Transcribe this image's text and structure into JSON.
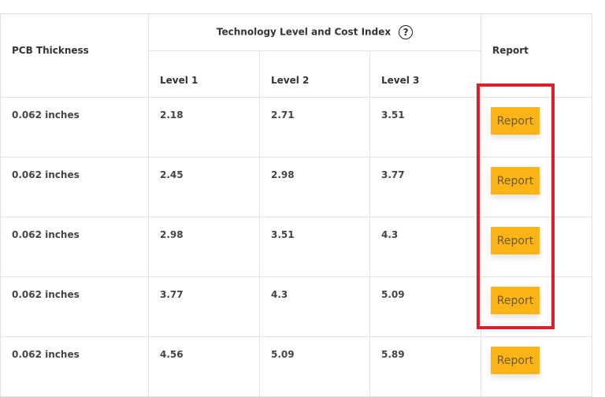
{
  "table": {
    "group_header": "Technology Level and Cost Index",
    "help_icon": "question-circle-icon",
    "columns": [
      "PCB Thickness",
      "Level 1",
      "Level 2",
      "Level 3",
      "Report"
    ],
    "rows": [
      {
        "thickness": "0.062 inches",
        "l1": "2.18",
        "l2": "2.71",
        "l3": "3.51",
        "button": "Report"
      },
      {
        "thickness": "0.062 inches",
        "l1": "2.45",
        "l2": "2.98",
        "l3": "3.77",
        "button": "Report"
      },
      {
        "thickness": "0.062 inches",
        "l1": "2.98",
        "l2": "3.51",
        "l3": "4.3",
        "button": "Report"
      },
      {
        "thickness": "0.062 inches",
        "l1": "3.77",
        "l2": "4.3",
        "l3": "5.09",
        "button": "Report"
      },
      {
        "thickness": "0.062 inches",
        "l1": "4.56",
        "l2": "5.09",
        "l3": "5.89",
        "button": "Report"
      }
    ]
  },
  "colors": {
    "button": "#fdb515",
    "highlight": "#dc1f2b"
  }
}
